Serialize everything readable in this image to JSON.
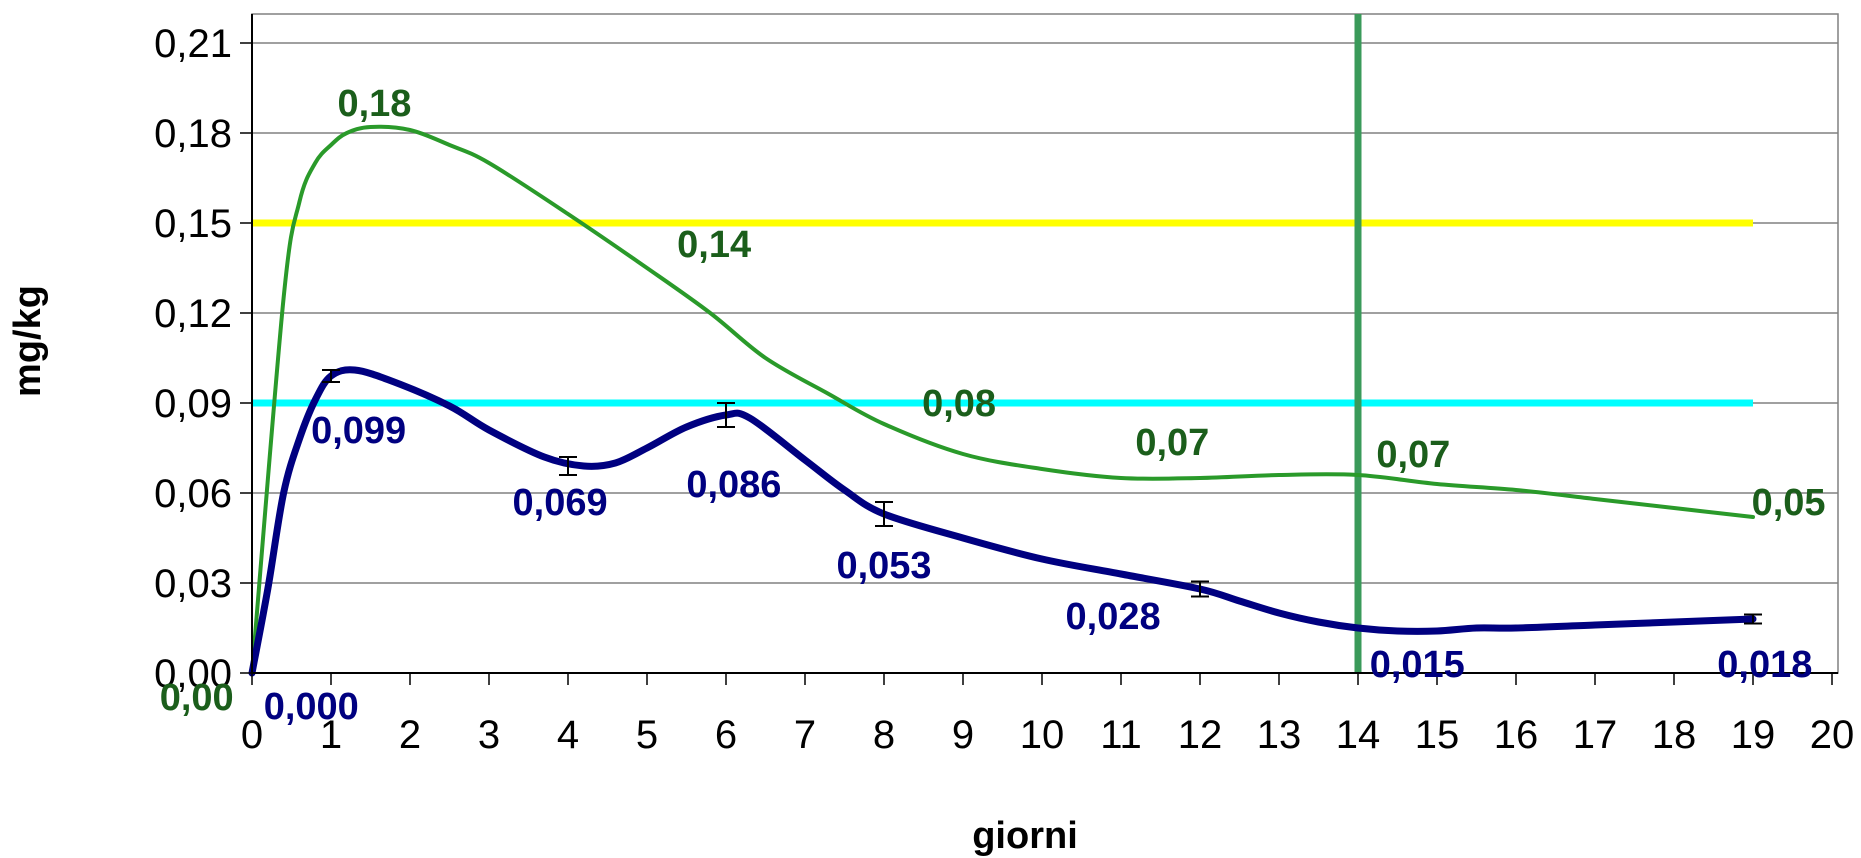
{
  "chart_data": {
    "type": "line",
    "title": "",
    "xlabel": "giorni",
    "ylabel": "mg/kg",
    "xlim": [
      0,
      20
    ],
    "ylim": [
      0,
      0.21
    ],
    "x_ticks": [
      "0",
      "1",
      "2",
      "3",
      "4",
      "5",
      "6",
      "7",
      "8",
      "9",
      "10",
      "11",
      "12",
      "13",
      "14",
      "15",
      "16",
      "17",
      "18",
      "19",
      "20"
    ],
    "y_ticks": [
      "0,00",
      "0,03",
      "0,06",
      "0,09",
      "0,12",
      "0,15",
      "0,18",
      "0,21"
    ],
    "grid": true,
    "legend": "none",
    "colors": {
      "green_series": "#2a9a2a",
      "green_labels": "#1b5e1b",
      "blue_series": "#000080",
      "blue_labels": "#000080",
      "yellow_line": "#ffff00",
      "cyan_line": "#00ffff",
      "vertical_line": "#3a9a5a",
      "grid": "#808080"
    },
    "series": [
      {
        "color": "green",
        "x": [
          0,
          0.4,
          0.6,
          0.8,
          1,
          1.2,
          1.5,
          2,
          2.5,
          3,
          4,
          5,
          5.8,
          6.5,
          7.3,
          8,
          9,
          10,
          11,
          12,
          13,
          14,
          15,
          16,
          17,
          18,
          19
        ],
        "y": [
          0,
          0.125,
          0.157,
          0.17,
          0.176,
          0.18,
          0.182,
          0.181,
          0.176,
          0.17,
          0.153,
          0.135,
          0.12,
          0.105,
          0.093,
          0.083,
          0.073,
          0.068,
          0.065,
          0.065,
          0.066,
          0.066,
          0.063,
          0.061,
          0.058,
          0.055,
          0.052
        ]
      },
      {
        "color": "blue",
        "x": [
          0,
          0.2,
          0.4,
          0.6,
          0.8,
          1,
          1.3,
          1.8,
          2.5,
          3,
          3.7,
          4.2,
          4.6,
          5,
          5.5,
          6,
          6.3,
          7,
          7.5,
          8,
          9,
          10,
          11,
          12,
          12.5,
          13,
          13.5,
          14,
          14.5,
          15,
          15.5,
          16,
          17,
          18,
          19
        ],
        "y": [
          0,
          0.028,
          0.06,
          0.078,
          0.091,
          0.099,
          0.101,
          0.097,
          0.089,
          0.081,
          0.072,
          0.069,
          0.07,
          0.075,
          0.082,
          0.086,
          0.085,
          0.071,
          0.061,
          0.053,
          0.045,
          0.038,
          0.033,
          0.028,
          0.024,
          0.02,
          0.017,
          0.015,
          0.014,
          0.014,
          0.015,
          0.015,
          0.016,
          0.017,
          0.018
        ]
      }
    ],
    "error_bars": [
      {
        "x": 1,
        "y": 0.099,
        "err": 0.002
      },
      {
        "x": 4,
        "y": 0.069,
        "err": 0.003
      },
      {
        "x": 6,
        "y": 0.086,
        "err": 0.004
      },
      {
        "x": 8,
        "y": 0.053,
        "err": 0.004
      },
      {
        "x": 12,
        "y": 0.028,
        "err": 0.0025
      },
      {
        "x": 19,
        "y": 0.018,
        "err": 0.0015
      }
    ],
    "reference_lines": [
      {
        "orientation": "horizontal",
        "value": 0.15,
        "from": 0,
        "to": 19,
        "color": "yellow"
      },
      {
        "orientation": "horizontal",
        "value": 0.09,
        "from": 0,
        "to": 19,
        "color": "cyan"
      },
      {
        "orientation": "vertical",
        "value": 14,
        "color": "green"
      }
    ],
    "annotations": [
      {
        "text": "0,00",
        "series": "green",
        "x": -0.7,
        "y": -0.008
      },
      {
        "text": "0,18",
        "series": "green",
        "x": 1.55,
        "y": 0.19
      },
      {
        "text": "0,14",
        "series": "green",
        "x": 5.85,
        "y": 0.143
      },
      {
        "text": "0,08",
        "series": "green",
        "x": 8.95,
        "y": 0.09
      },
      {
        "text": "0,07",
        "series": "green",
        "x": 11.65,
        "y": 0.077
      },
      {
        "text": "0,07",
        "series": "green",
        "x": 14.7,
        "y": 0.073
      },
      {
        "text": "0,05",
        "series": "green",
        "x": 19.45,
        "y": 0.057
      },
      {
        "text": "0,000",
        "series": "blue",
        "x": 0.75,
        "y": -0.011
      },
      {
        "text": "0,099",
        "series": "blue",
        "x": 1.35,
        "y": 0.081
      },
      {
        "text": "0,069",
        "series": "blue",
        "x": 3.9,
        "y": 0.057
      },
      {
        "text": "0,086",
        "series": "blue",
        "x": 6.1,
        "y": 0.063
      },
      {
        "text": "0,053",
        "series": "blue",
        "x": 8.0,
        "y": 0.036
      },
      {
        "text": "0,028",
        "series": "blue",
        "x": 10.9,
        "y": 0.019
      },
      {
        "text": "0,015",
        "series": "blue",
        "x": 14.75,
        "y": 0.003
      },
      {
        "text": "0,018",
        "series": "blue",
        "x": 19.15,
        "y": 0.003
      }
    ]
  }
}
